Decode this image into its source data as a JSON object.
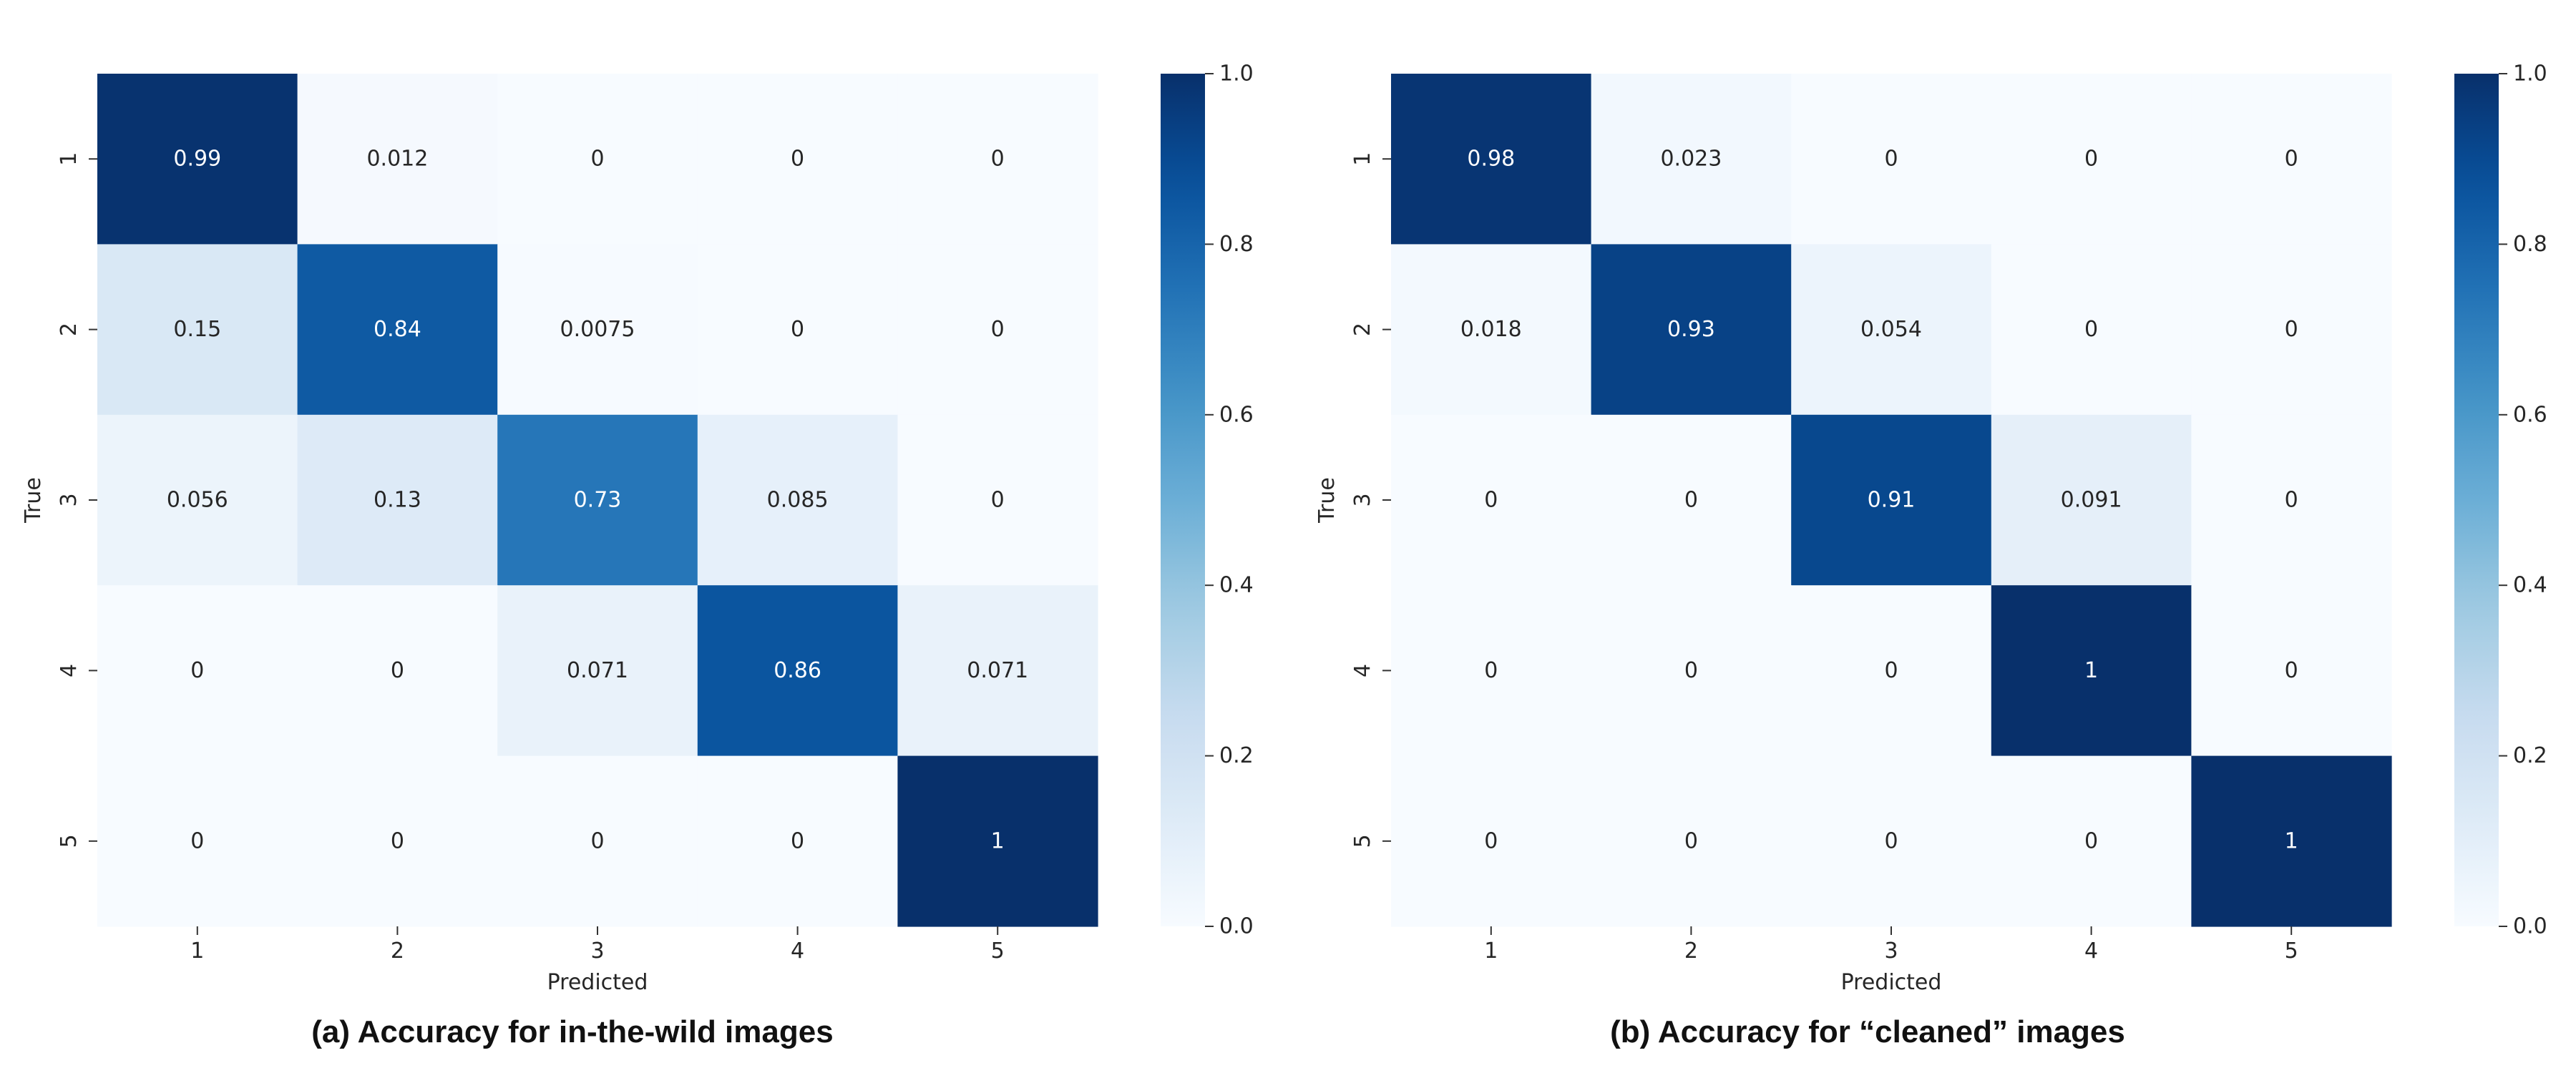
{
  "chart_data": [
    {
      "type": "heatmap",
      "caption": "(a) Accuracy for in-the-wild images",
      "x_categories": [
        "1",
        "2",
        "3",
        "4",
        "5"
      ],
      "y_categories": [
        "1",
        "2",
        "3",
        "4",
        "5"
      ],
      "xlabel": "Predicted",
      "ylabel": "True",
      "values": [
        [
          0.99,
          0.012,
          0,
          0,
          0
        ],
        [
          0.15,
          0.84,
          0.0075,
          0,
          0
        ],
        [
          0.056,
          0.13,
          0.73,
          0.085,
          0
        ],
        [
          0,
          0,
          0.071,
          0.86,
          0.071
        ],
        [
          0,
          0,
          0,
          0,
          1
        ]
      ],
      "value_labels": [
        [
          "0.99",
          "0.012",
          "0",
          "0",
          "0"
        ],
        [
          "0.15",
          "0.84",
          "0.0075",
          "0",
          "0"
        ],
        [
          "0.056",
          "0.13",
          "0.73",
          "0.085",
          "0"
        ],
        [
          "0",
          "0",
          "0.071",
          "0.86",
          "0.071"
        ],
        [
          "0",
          "0",
          "0",
          "0",
          "1"
        ]
      ],
      "colorbar": {
        "range": [
          0,
          1
        ],
        "ticks": [
          "0.0",
          "0.2",
          "0.4",
          "0.6",
          "0.8",
          "1.0"
        ],
        "colormap": "Blues"
      }
    },
    {
      "type": "heatmap",
      "caption": "(b) Accuracy for “cleaned” images",
      "x_categories": [
        "1",
        "2",
        "3",
        "4",
        "5"
      ],
      "y_categories": [
        "1",
        "2",
        "3",
        "4",
        "5"
      ],
      "xlabel": "Predicted",
      "ylabel": "True",
      "values": [
        [
          0.98,
          0.023,
          0,
          0,
          0
        ],
        [
          0.018,
          0.93,
          0.054,
          0,
          0
        ],
        [
          0,
          0,
          0.91,
          0.091,
          0
        ],
        [
          0,
          0,
          0,
          1,
          0
        ],
        [
          0,
          0,
          0,
          0,
          1
        ]
      ],
      "value_labels": [
        [
          "0.98",
          "0.023",
          "0",
          "0",
          "0"
        ],
        [
          "0.018",
          "0.93",
          "0.054",
          "0",
          "0"
        ],
        [
          "0",
          "0",
          "0.91",
          "0.091",
          "0"
        ],
        [
          "0",
          "0",
          "0",
          "1",
          "0"
        ],
        [
          "0",
          "0",
          "0",
          "0",
          "1"
        ]
      ],
      "colorbar": {
        "range": [
          0,
          1
        ],
        "ticks": [
          "0.0",
          "0.2",
          "0.4",
          "0.6",
          "0.8",
          "1.0"
        ],
        "colormap": "Blues"
      }
    }
  ]
}
